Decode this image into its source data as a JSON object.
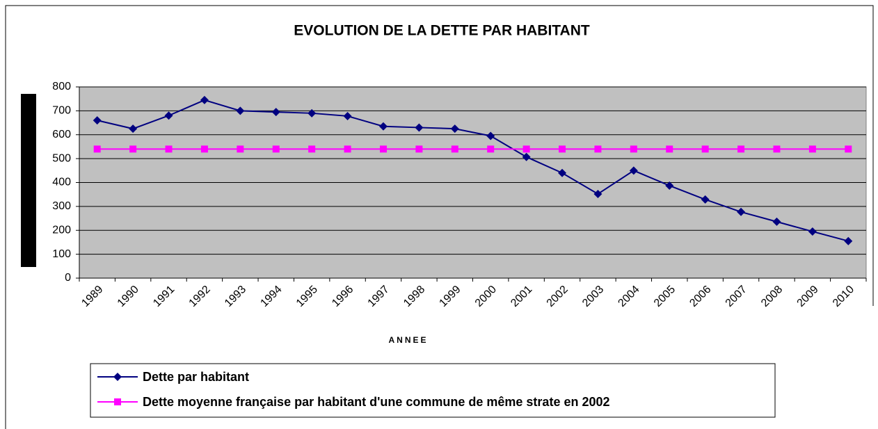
{
  "chart_data": {
    "type": "line",
    "title": "EVOLUTION DE LA DETTE PAR HABITANT",
    "x_label": "ANNEE",
    "categories": [
      "1989",
      "1990",
      "1991",
      "1992",
      "1993",
      "1994",
      "1995",
      "1996",
      "1997",
      "1998",
      "1999",
      "2000",
      "2001",
      "2002",
      "2003",
      "2004",
      "2005",
      "2006",
      "2007",
      "2008",
      "2009",
      "2010"
    ],
    "series": [
      {
        "name": "Dette par habitant",
        "color": "#000080",
        "marker": "diamond",
        "values": [
          660,
          625,
          680,
          745,
          700,
          695,
          690,
          678,
          635,
          630,
          625,
          595,
          507,
          440,
          352,
          450,
          387,
          329,
          277,
          236,
          195,
          155
        ]
      },
      {
        "name": "Dette moyenne française par habitant d'une commune de même strate en 2002",
        "color": "#ff00ff",
        "marker": "square",
        "values": [
          540,
          540,
          540,
          540,
          540,
          540,
          540,
          540,
          540,
          540,
          540,
          540,
          540,
          540,
          540,
          540,
          540,
          540,
          540,
          540,
          540,
          540
        ]
      }
    ],
    "ylim": [
      0,
      800
    ],
    "yticks": [
      0,
      100,
      200,
      300,
      400,
      500,
      600,
      700,
      800
    ],
    "grid": true
  }
}
